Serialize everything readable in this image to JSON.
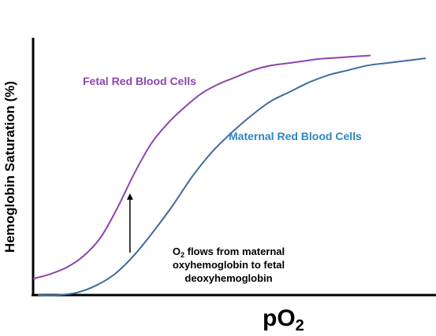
{
  "chart_data": {
    "type": "line",
    "title": "",
    "xlabel_main": "pO",
    "xlabel_sub": "2",
    "ylabel": "Hemoglobin Saturation (%)",
    "grid": false,
    "xlim": [
      0,
      100
    ],
    "ylim": [
      0,
      100
    ],
    "series": [
      {
        "name": "Fetal Red Blood Cells",
        "color": "#8e44ad",
        "x": [
          0,
          5,
          10,
          15,
          20,
          25,
          30,
          35,
          40,
          45,
          50,
          55,
          60,
          65,
          70,
          75,
          80,
          85,
          90,
          95,
          100
        ],
        "y": [
          2,
          4,
          7,
          12,
          20,
          33,
          48,
          61,
          70,
          77,
          83,
          87,
          90,
          93,
          95,
          96,
          97,
          98,
          98.5,
          99,
          99.5
        ]
      },
      {
        "name": "Maternal Red Blood Cells",
        "color": "#3f6aa0",
        "x": [
          0,
          5,
          10,
          15,
          20,
          25,
          30,
          35,
          40,
          45,
          50,
          55,
          60,
          65,
          70,
          75,
          80,
          85,
          90,
          95,
          100
        ],
        "y": [
          0,
          0,
          1,
          4,
          9,
          17,
          27,
          38,
          50,
          60,
          68,
          75,
          81,
          85,
          89,
          92,
          94,
          96,
          97,
          98,
          99
        ]
      }
    ],
    "annotations": {
      "fetal_label": "Fetal Red Blood Cells",
      "maternal_label": "Maternal Red Blood Cells",
      "arrow_text_line1_main": "O",
      "arrow_text_line1_sub": "2",
      "arrow_text_line1_rest": " flows from maternal",
      "arrow_text_line2": "oxyhemoglobin to fetal",
      "arrow_text_line3": "deoxyhemoglobin",
      "arrow_x": 28
    }
  }
}
